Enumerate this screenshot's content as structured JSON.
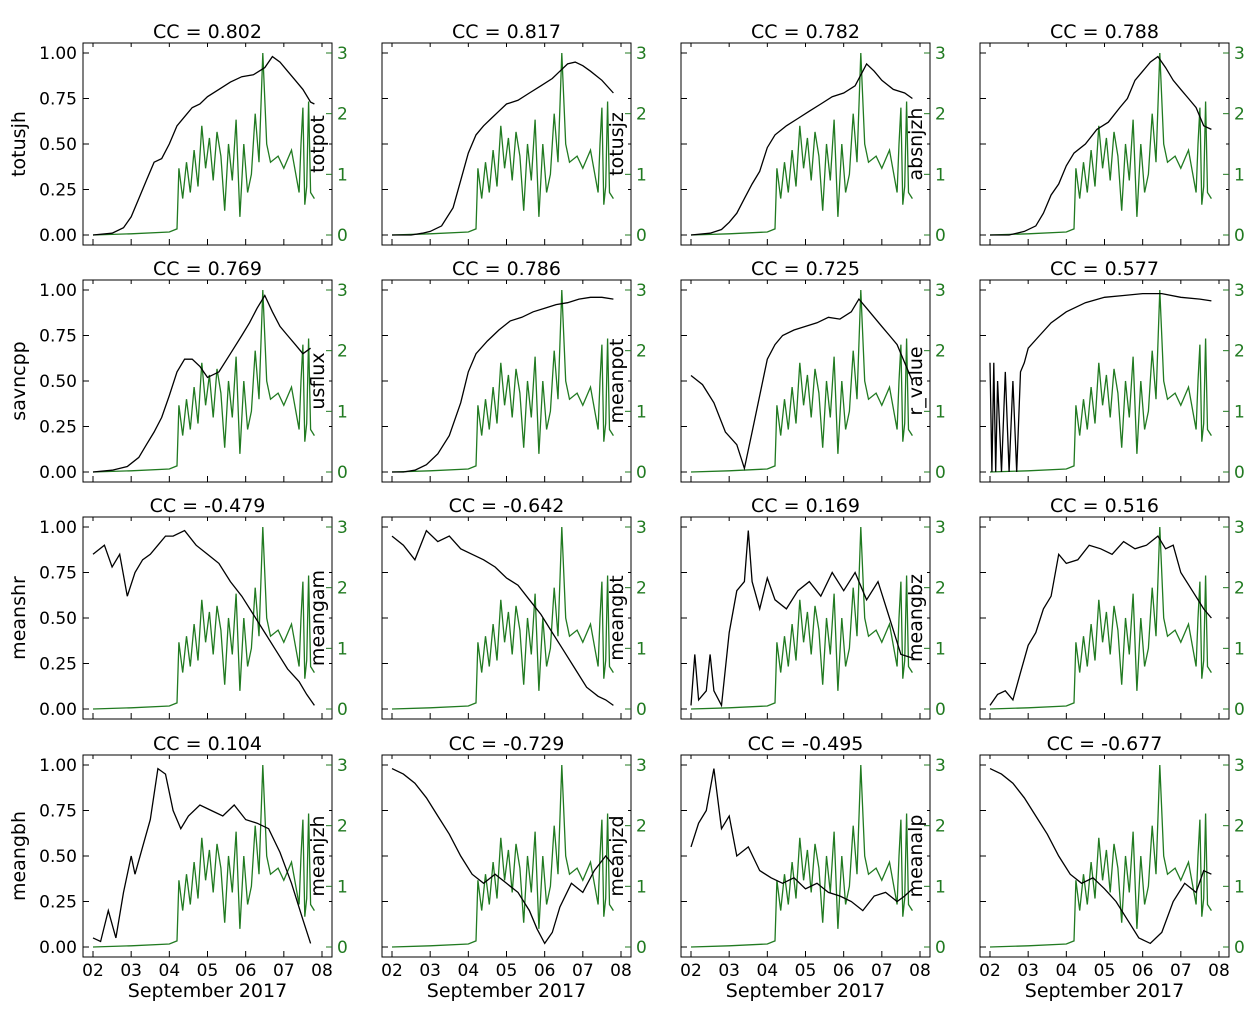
{
  "figure": {
    "xlabel": "September 2017",
    "x_tick_labels": [
      "02",
      "03",
      "04",
      "05",
      "06",
      "07",
      "08"
    ],
    "left_tick_labels": [
      "0.00",
      "0.25",
      "0.50",
      "0.75",
      "1.00"
    ],
    "right_tick_labels": [
      "0",
      "1",
      "2",
      "3"
    ],
    "colors": {
      "feature": "#000000",
      "flare": "#217a21"
    }
  },
  "chart_data": [
    {
      "type": "line",
      "title": "CC = 0.802",
      "ylabel": "totusjh",
      "xlim": [
        2,
        8
      ],
      "ylim": [
        0,
        1
      ],
      "y2lim": [
        0,
        3
      ],
      "xlabel": "",
      "feature": {
        "x": [
          2.0,
          2.5,
          2.8,
          3.0,
          3.2,
          3.4,
          3.6,
          3.8,
          4.0,
          4.2,
          4.4,
          4.6,
          4.8,
          5.0,
          5.3,
          5.6,
          5.9,
          6.2,
          6.5,
          6.7,
          6.9,
          7.1,
          7.3,
          7.5,
          7.7,
          7.8
        ],
        "y": [
          0.0,
          0.01,
          0.04,
          0.1,
          0.2,
          0.3,
          0.4,
          0.42,
          0.5,
          0.6,
          0.65,
          0.7,
          0.72,
          0.76,
          0.8,
          0.84,
          0.87,
          0.88,
          0.92,
          0.98,
          0.95,
          0.9,
          0.85,
          0.8,
          0.73,
          0.72
        ]
      }
    },
    {
      "type": "line",
      "title": "CC = 0.817",
      "ylabel": "totpot",
      "xlim": [
        2,
        8
      ],
      "ylim": [
        0,
        1
      ],
      "y2lim": [
        0,
        3
      ],
      "xlabel": "",
      "feature": {
        "x": [
          2.0,
          2.5,
          2.8,
          3.0,
          3.3,
          3.6,
          3.8,
          4.0,
          4.2,
          4.4,
          4.6,
          4.8,
          5.0,
          5.3,
          5.6,
          5.9,
          6.2,
          6.4,
          6.6,
          6.8,
          7.0,
          7.2,
          7.5,
          7.8
        ],
        "y": [
          0.0,
          0.0,
          0.01,
          0.02,
          0.05,
          0.15,
          0.3,
          0.45,
          0.55,
          0.6,
          0.64,
          0.68,
          0.72,
          0.74,
          0.78,
          0.82,
          0.86,
          0.9,
          0.94,
          0.95,
          0.93,
          0.9,
          0.85,
          0.78
        ]
      }
    },
    {
      "type": "line",
      "title": "CC = 0.782",
      "ylabel": "totusjz",
      "xlim": [
        2,
        8
      ],
      "ylim": [
        0,
        1
      ],
      "y2lim": [
        0,
        3
      ],
      "xlabel": "",
      "feature": {
        "x": [
          2.0,
          2.5,
          2.8,
          3.0,
          3.2,
          3.4,
          3.6,
          3.8,
          4.0,
          4.2,
          4.5,
          4.8,
          5.1,
          5.4,
          5.7,
          6.0,
          6.3,
          6.5,
          6.6,
          6.8,
          7.0,
          7.3,
          7.6,
          7.8
        ],
        "y": [
          0.0,
          0.01,
          0.03,
          0.07,
          0.12,
          0.2,
          0.28,
          0.35,
          0.48,
          0.55,
          0.6,
          0.64,
          0.68,
          0.72,
          0.76,
          0.78,
          0.82,
          0.9,
          0.94,
          0.9,
          0.85,
          0.8,
          0.78,
          0.75
        ]
      }
    },
    {
      "type": "line",
      "title": "CC = 0.788",
      "ylabel": "absnjzh",
      "xlim": [
        2,
        8
      ],
      "ylim": [
        0,
        1
      ],
      "y2lim": [
        0,
        3
      ],
      "xlabel": "",
      "feature": {
        "x": [
          2.0,
          2.5,
          2.9,
          3.2,
          3.4,
          3.6,
          3.8,
          4.0,
          4.2,
          4.5,
          4.8,
          5.1,
          5.4,
          5.6,
          5.8,
          6.0,
          6.2,
          6.4,
          6.6,
          6.8,
          7.0,
          7.2,
          7.4,
          7.6,
          7.8
        ],
        "y": [
          0.0,
          0.0,
          0.02,
          0.05,
          0.12,
          0.22,
          0.28,
          0.38,
          0.45,
          0.5,
          0.58,
          0.62,
          0.7,
          0.75,
          0.85,
          0.9,
          0.95,
          0.98,
          0.92,
          0.85,
          0.8,
          0.75,
          0.7,
          0.6,
          0.58
        ]
      }
    },
    {
      "type": "line",
      "title": "CC = 0.769",
      "ylabel": "savncpp",
      "xlim": [
        2,
        8
      ],
      "ylim": [
        0,
        1
      ],
      "y2lim": [
        0,
        3
      ],
      "xlabel": "",
      "feature": {
        "x": [
          2.0,
          2.5,
          2.9,
          3.2,
          3.4,
          3.6,
          3.8,
          4.0,
          4.2,
          4.4,
          4.6,
          4.8,
          5.0,
          5.3,
          5.6,
          5.9,
          6.1,
          6.3,
          6.5,
          6.7,
          6.9,
          7.1,
          7.3,
          7.5,
          7.7
        ],
        "y": [
          0.0,
          0.01,
          0.03,
          0.08,
          0.15,
          0.22,
          0.3,
          0.42,
          0.55,
          0.62,
          0.62,
          0.58,
          0.52,
          0.55,
          0.65,
          0.75,
          0.82,
          0.9,
          0.97,
          0.88,
          0.8,
          0.75,
          0.7,
          0.65,
          0.68
        ]
      }
    },
    {
      "type": "line",
      "title": "CC = 0.786",
      "ylabel": "usflux",
      "xlim": [
        2,
        8
      ],
      "ylim": [
        0,
        1
      ],
      "y2lim": [
        0,
        3
      ],
      "xlabel": "",
      "feature": {
        "x": [
          2.0,
          2.3,
          2.6,
          2.9,
          3.2,
          3.5,
          3.8,
          4.0,
          4.2,
          4.5,
          4.8,
          5.1,
          5.4,
          5.7,
          6.0,
          6.3,
          6.6,
          6.9,
          7.2,
          7.5,
          7.8
        ],
        "y": [
          0.0,
          0.0,
          0.01,
          0.04,
          0.1,
          0.2,
          0.38,
          0.55,
          0.65,
          0.72,
          0.78,
          0.83,
          0.85,
          0.88,
          0.9,
          0.92,
          0.93,
          0.95,
          0.96,
          0.96,
          0.95
        ]
      }
    },
    {
      "type": "line",
      "title": "CC = 0.725",
      "ylabel": "meanpot",
      "xlim": [
        2,
        8
      ],
      "ylim": [
        0,
        1
      ],
      "y2lim": [
        0,
        3
      ],
      "xlabel": "",
      "feature": {
        "x": [
          2.0,
          2.3,
          2.6,
          2.9,
          3.2,
          3.4,
          3.6,
          3.8,
          4.0,
          4.2,
          4.4,
          4.7,
          5.0,
          5.3,
          5.6,
          5.9,
          6.2,
          6.4,
          6.6,
          6.8,
          7.0,
          7.2,
          7.4,
          7.6,
          7.8
        ],
        "y": [
          0.53,
          0.48,
          0.38,
          0.22,
          0.15,
          0.02,
          0.22,
          0.42,
          0.62,
          0.7,
          0.75,
          0.78,
          0.8,
          0.82,
          0.85,
          0.84,
          0.88,
          0.95,
          0.9,
          0.85,
          0.8,
          0.75,
          0.7,
          0.6,
          0.5
        ]
      }
    },
    {
      "type": "line",
      "title": "CC = 0.577",
      "ylabel": "r_value",
      "xlim": [
        2,
        8
      ],
      "ylim": [
        0,
        1
      ],
      "y2lim": [
        0,
        3
      ],
      "xlabel": "",
      "feature": {
        "x": [
          2.0,
          2.05,
          2.1,
          2.15,
          2.2,
          2.3,
          2.4,
          2.5,
          2.6,
          2.7,
          2.8,
          2.9,
          3.0,
          3.3,
          3.6,
          4.0,
          4.5,
          5.0,
          5.5,
          6.0,
          6.5,
          7.0,
          7.5,
          7.8
        ],
        "y": [
          0.6,
          0.0,
          0.6,
          0.0,
          0.5,
          0.0,
          0.55,
          0.0,
          0.5,
          0.0,
          0.55,
          0.6,
          0.68,
          0.75,
          0.82,
          0.88,
          0.93,
          0.96,
          0.97,
          0.98,
          0.98,
          0.96,
          0.95,
          0.94
        ]
      }
    },
    {
      "type": "line",
      "title": "CC = -0.479",
      "ylabel": "meanshr",
      "xlim": [
        2,
        8
      ],
      "ylim": [
        0,
        1
      ],
      "y2lim": [
        0,
        3
      ],
      "xlabel": "",
      "feature": {
        "x": [
          2.0,
          2.3,
          2.5,
          2.7,
          2.9,
          3.1,
          3.3,
          3.5,
          3.7,
          3.9,
          4.1,
          4.4,
          4.7,
          5.0,
          5.3,
          5.6,
          5.9,
          6.2,
          6.5,
          6.8,
          7.1,
          7.4,
          7.6,
          7.8
        ],
        "y": [
          0.85,
          0.9,
          0.78,
          0.85,
          0.62,
          0.75,
          0.82,
          0.85,
          0.9,
          0.95,
          0.95,
          0.98,
          0.9,
          0.85,
          0.8,
          0.7,
          0.62,
          0.52,
          0.42,
          0.32,
          0.22,
          0.15,
          0.08,
          0.02
        ]
      }
    },
    {
      "type": "line",
      "title": "CC = -0.642",
      "ylabel": "meangam",
      "xlim": [
        2,
        8
      ],
      "ylim": [
        0,
        1
      ],
      "y2lim": [
        0,
        3
      ],
      "xlabel": "",
      "feature": {
        "x": [
          2.0,
          2.3,
          2.6,
          2.9,
          3.2,
          3.5,
          3.8,
          4.1,
          4.4,
          4.7,
          5.0,
          5.3,
          5.6,
          5.9,
          6.2,
          6.5,
          6.8,
          7.1,
          7.4,
          7.6,
          7.8
        ],
        "y": [
          0.95,
          0.9,
          0.82,
          0.98,
          0.92,
          0.95,
          0.88,
          0.85,
          0.82,
          0.78,
          0.72,
          0.68,
          0.6,
          0.52,
          0.42,
          0.32,
          0.22,
          0.12,
          0.07,
          0.05,
          0.02
        ]
      }
    },
    {
      "type": "line",
      "title": "CC = 0.169",
      "ylabel": "meangbt",
      "xlim": [
        2,
        8
      ],
      "ylim": [
        0,
        1
      ],
      "y2lim": [
        0,
        3
      ],
      "xlabel": "",
      "feature": {
        "x": [
          2.0,
          2.1,
          2.2,
          2.4,
          2.5,
          2.6,
          2.8,
          3.0,
          3.2,
          3.4,
          3.5,
          3.6,
          3.8,
          4.0,
          4.2,
          4.5,
          4.8,
          5.1,
          5.4,
          5.7,
          6.0,
          6.3,
          6.6,
          6.9,
          7.2,
          7.5,
          7.8
        ],
        "y": [
          0.02,
          0.3,
          0.05,
          0.1,
          0.3,
          0.1,
          0.02,
          0.42,
          0.65,
          0.7,
          0.98,
          0.7,
          0.55,
          0.72,
          0.6,
          0.55,
          0.65,
          0.7,
          0.62,
          0.75,
          0.65,
          0.75,
          0.6,
          0.7,
          0.5,
          0.3,
          0.28
        ]
      }
    },
    {
      "type": "line",
      "title": "CC = 0.516",
      "ylabel": "meangbz",
      "xlim": [
        2,
        8
      ],
      "ylim": [
        0,
        1
      ],
      "y2lim": [
        0,
        3
      ],
      "xlabel": "",
      "feature": {
        "x": [
          2.0,
          2.2,
          2.4,
          2.6,
          2.8,
          3.0,
          3.2,
          3.4,
          3.6,
          3.8,
          4.0,
          4.3,
          4.6,
          4.9,
          5.2,
          5.5,
          5.8,
          6.1,
          6.4,
          6.6,
          6.8,
          7.0,
          7.3,
          7.6,
          7.8
        ],
        "y": [
          0.02,
          0.08,
          0.1,
          0.05,
          0.2,
          0.35,
          0.42,
          0.55,
          0.62,
          0.85,
          0.8,
          0.82,
          0.9,
          0.88,
          0.85,
          0.92,
          0.88,
          0.9,
          0.95,
          0.88,
          0.9,
          0.75,
          0.65,
          0.55,
          0.5
        ]
      }
    },
    {
      "type": "line",
      "title": "CC = 0.104",
      "ylabel": "meangbh",
      "xlim": [
        2,
        8
      ],
      "ylim": [
        0,
        1
      ],
      "y2lim": [
        0,
        3
      ],
      "xlabel": "",
      "feature": {
        "x": [
          2.0,
          2.2,
          2.4,
          2.6,
          2.8,
          3.0,
          3.1,
          3.3,
          3.5,
          3.7,
          3.9,
          4.1,
          4.3,
          4.5,
          4.8,
          5.1,
          5.4,
          5.7,
          6.0,
          6.3,
          6.6,
          6.9,
          7.2,
          7.5,
          7.7
        ],
        "y": [
          0.05,
          0.03,
          0.2,
          0.05,
          0.3,
          0.5,
          0.4,
          0.55,
          0.7,
          0.98,
          0.95,
          0.75,
          0.65,
          0.72,
          0.78,
          0.75,
          0.72,
          0.78,
          0.7,
          0.68,
          0.65,
          0.52,
          0.35,
          0.15,
          0.02
        ]
      }
    },
    {
      "type": "line",
      "title": "CC = -0.729",
      "ylabel": "meanjzh",
      "xlim": [
        2,
        8
      ],
      "ylim": [
        0,
        1
      ],
      "y2lim": [
        0,
        3
      ],
      "xlabel": "",
      "feature": {
        "x": [
          2.0,
          2.3,
          2.6,
          2.9,
          3.2,
          3.5,
          3.8,
          4.1,
          4.4,
          4.7,
          5.0,
          5.3,
          5.6,
          5.8,
          6.0,
          6.2,
          6.4,
          6.7,
          7.0,
          7.3,
          7.6,
          7.8
        ],
        "y": [
          0.98,
          0.95,
          0.9,
          0.82,
          0.72,
          0.62,
          0.5,
          0.4,
          0.35,
          0.4,
          0.35,
          0.3,
          0.2,
          0.1,
          0.02,
          0.08,
          0.22,
          0.35,
          0.3,
          0.42,
          0.5,
          0.45
        ]
      }
    },
    {
      "type": "line",
      "title": "CC = -0.495",
      "ylabel": "meanjzd",
      "xlim": [
        2,
        8
      ],
      "ylim": [
        0,
        1
      ],
      "y2lim": [
        0,
        3
      ],
      "xlabel": "",
      "feature": {
        "x": [
          2.0,
          2.2,
          2.4,
          2.6,
          2.8,
          3.0,
          3.2,
          3.5,
          3.8,
          4.1,
          4.4,
          4.7,
          5.0,
          5.3,
          5.6,
          5.9,
          6.2,
          6.5,
          6.8,
          7.1,
          7.4,
          7.6,
          7.8
        ],
        "y": [
          0.55,
          0.68,
          0.75,
          0.98,
          0.65,
          0.72,
          0.5,
          0.55,
          0.42,
          0.38,
          0.35,
          0.38,
          0.32,
          0.35,
          0.3,
          0.28,
          0.25,
          0.2,
          0.28,
          0.3,
          0.25,
          0.28,
          0.32
        ]
      }
    },
    {
      "type": "line",
      "title": "CC = -0.677",
      "ylabel": "meanalp",
      "xlim": [
        2,
        8
      ],
      "ylim": [
        0,
        1
      ],
      "y2lim": [
        0,
        3
      ],
      "xlabel": "",
      "feature": {
        "x": [
          2.0,
          2.3,
          2.6,
          2.9,
          3.2,
          3.5,
          3.8,
          4.1,
          4.4,
          4.7,
          5.0,
          5.3,
          5.6,
          5.9,
          6.2,
          6.5,
          6.8,
          7.1,
          7.4,
          7.6,
          7.8
        ],
        "y": [
          0.98,
          0.95,
          0.9,
          0.82,
          0.72,
          0.62,
          0.5,
          0.4,
          0.35,
          0.38,
          0.32,
          0.25,
          0.15,
          0.05,
          0.02,
          0.08,
          0.25,
          0.35,
          0.3,
          0.42,
          0.4
        ]
      }
    }
  ],
  "flare_series": {
    "x": [
      2.0,
      3.0,
      4.0,
      4.2,
      4.25,
      4.35,
      4.45,
      4.55,
      4.65,
      4.75,
      4.85,
      4.95,
      5.05,
      5.15,
      5.25,
      5.35,
      5.45,
      5.55,
      5.65,
      5.75,
      5.85,
      5.95,
      6.05,
      6.15,
      6.25,
      6.35,
      6.45,
      6.55,
      6.65,
      6.85,
      7.0,
      7.2,
      7.4,
      7.45,
      7.5,
      7.55,
      7.6,
      7.65,
      7.7,
      7.8
    ],
    "y": [
      0.0,
      0.02,
      0.05,
      0.1,
      1.1,
      0.6,
      1.2,
      0.7,
      1.4,
      0.8,
      1.8,
      1.1,
      1.6,
      0.9,
      1.7,
      1.3,
      0.4,
      1.5,
      0.9,
      1.9,
      0.3,
      1.5,
      0.7,
      1.0,
      2.0,
      1.2,
      3.0,
      1.5,
      1.2,
      1.3,
      1.1,
      1.4,
      0.7,
      1.5,
      2.1,
      0.5,
      0.8,
      2.2,
      0.7,
      0.6
    ]
  }
}
